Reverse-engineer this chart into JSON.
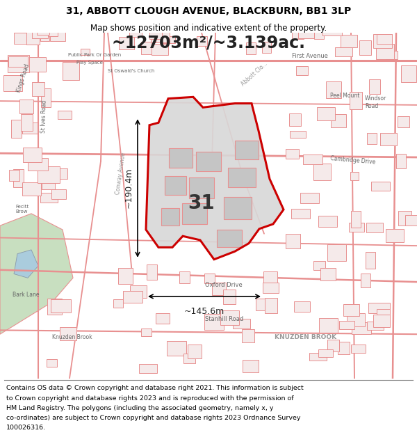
{
  "title": "31, ABBOTT CLOUGH AVENUE, BLACKBURN, BB1 3LP",
  "subtitle": "Map shows position and indicative extent of the property.",
  "area_text": "~12703m²/~3.139ac.",
  "dim1_text": "~190.4m",
  "dim2_text": "~145.6m",
  "label_31": "31",
  "footer_lines": [
    "Contains OS data © Crown copyright and database right 2021. This information is subject",
    "to Crown copyright and database rights 2023 and is reproduced with the permission of",
    "HM Land Registry. The polygons (including the associated geometry, namely x, y",
    "co-ordinates) are subject to Crown copyright and database rights 2023 Ordnance Survey",
    "100026316."
  ],
  "map_bg": "#f5eeee",
  "street_color": "#e89090",
  "property_fill": "#d8d8d8",
  "property_edge": "#cc0000",
  "green_area": "#c8dfc0",
  "figsize": [
    6.0,
    6.25
  ],
  "dpi": 100
}
